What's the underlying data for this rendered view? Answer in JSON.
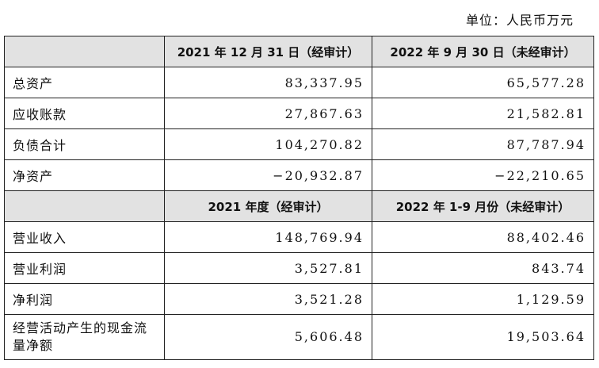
{
  "unit_label": "单位：人民币万元",
  "section1": {
    "headers": [
      "",
      "2021 年 12 月 31 日（经审计）",
      "2022 年 9 月 30 日（未经审计）"
    ],
    "rows": [
      {
        "label": "总资产",
        "v1": "83,337.95",
        "v2": "65,577.28"
      },
      {
        "label": "应收账款",
        "v1": "27,867.63",
        "v2": "21,582.81"
      },
      {
        "label": "负债合计",
        "v1": "104,270.82",
        "v2": "87,787.94"
      },
      {
        "label": "净资产",
        "v1": "−20,932.87",
        "v2": "−22,210.65"
      }
    ]
  },
  "section2": {
    "headers": [
      "",
      "2021 年度（经审计）",
      "2022 年 1-9 月份（未经审计）"
    ],
    "rows": [
      {
        "label": "营业收入",
        "v1": "148,769.94",
        "v2": "88,402.46"
      },
      {
        "label": "营业利润",
        "v1": "3,527.81",
        "v2": "843.74"
      },
      {
        "label": "净利润",
        "v1": "3,521.28",
        "v2": "1,129.59"
      },
      {
        "label": "经营活动产生的现金流量净额",
        "v1": "5,606.48",
        "v2": "19,503.64"
      }
    ]
  }
}
